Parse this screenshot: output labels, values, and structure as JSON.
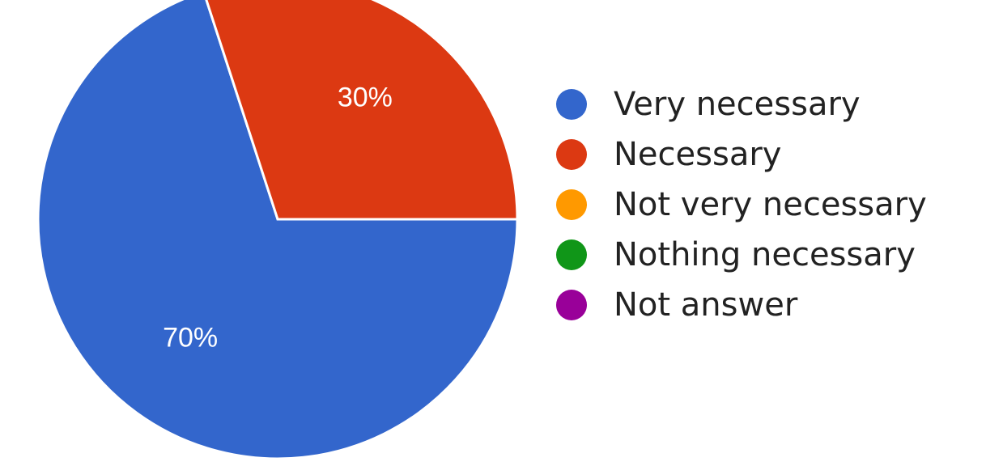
{
  "chart_data": {
    "type": "pie",
    "categories": [
      "Very necessary",
      "Necessary",
      "Not very necessary",
      "Nothing necessary",
      "Not answer"
    ],
    "values": [
      70,
      30,
      0,
      0,
      0
    ],
    "data_labels": [
      "70%",
      "30%",
      "",
      "",
      ""
    ],
    "colors": [
      "#3366cc",
      "#dc3912",
      "#ff9900",
      "#109618",
      "#990099"
    ],
    "legend_position": "right"
  }
}
